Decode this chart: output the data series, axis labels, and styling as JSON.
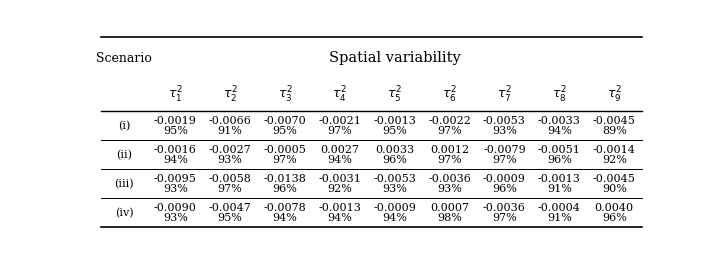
{
  "title": "Spatial variability",
  "col_label": "Scenario",
  "row_labels": [
    "(i)",
    "(ii)",
    "(iii)",
    "(iv)"
  ],
  "bias": [
    [
      "-0.0019",
      "-0.0066",
      "-0.0070",
      "-0.0021",
      "-0.0013",
      "-0.0022",
      "-0.0053",
      "-0.0033",
      "-0.0045"
    ],
    [
      "-0.0016",
      "-0.0027",
      "-0.0005",
      "0.0027",
      "0.0033",
      "0.0012",
      "-0.0079",
      "-0.0051",
      "-0.0014"
    ],
    [
      "-0.0095",
      "-0.0058",
      "-0.0138",
      "-0.0031",
      "-0.0053",
      "-0.0036",
      "-0.0009",
      "-0.0013",
      "-0.0045"
    ],
    [
      "-0.0090",
      "-0.0047",
      "-0.0078",
      "-0.0013",
      "-0.0009",
      "0.0007",
      "-0.0036",
      "-0.0004",
      "0.0040"
    ]
  ],
  "coverage": [
    [
      "95%",
      "91%",
      "95%",
      "97%",
      "95%",
      "97%",
      "93%",
      "94%",
      "89%"
    ],
    [
      "94%",
      "93%",
      "97%",
      "94%",
      "96%",
      "97%",
      "97%",
      "96%",
      "92%"
    ],
    [
      "93%",
      "97%",
      "96%",
      "92%",
      "93%",
      "93%",
      "96%",
      "91%",
      "90%"
    ],
    [
      "93%",
      "95%",
      "94%",
      "94%",
      "94%",
      "98%",
      "97%",
      "91%",
      "96%"
    ]
  ],
  "bg_color": "#ffffff",
  "text_color": "#000000",
  "line_color": "#000000",
  "fontsize": 8.0,
  "header_fontsize": 9.0,
  "title_fontsize": 10.5
}
